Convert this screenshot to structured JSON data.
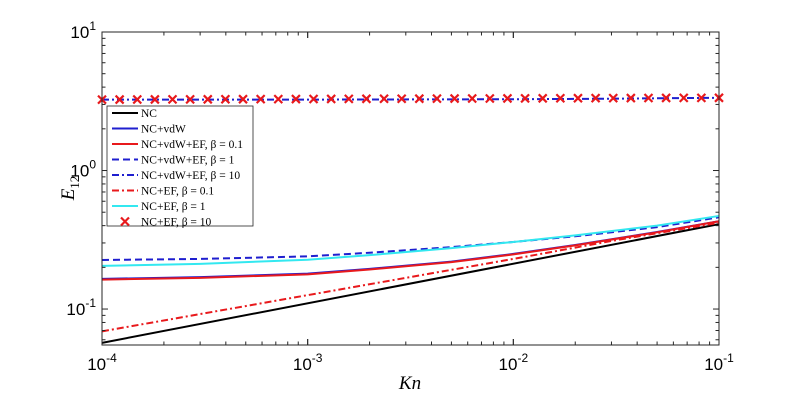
{
  "chart_data": {
    "type": "line",
    "xscale": "log",
    "yscale": "log",
    "xlim": [
      0.0001,
      0.1
    ],
    "ylim": [
      0.055,
      10
    ],
    "xlabel": "Kn",
    "ylabel": "E12",
    "ylabel_main": "E",
    "ylabel_sub": "12",
    "x_ticks": [
      {
        "value": 0.0001,
        "base": "10",
        "exp": "-4"
      },
      {
        "value": 0.001,
        "base": "10",
        "exp": "-3"
      },
      {
        "value": 0.01,
        "base": "10",
        "exp": "-2"
      },
      {
        "value": 0.1,
        "base": "10",
        "exp": "-1"
      }
    ],
    "y_ticks": [
      {
        "value": 0.1,
        "base": "10",
        "exp": "-1"
      },
      {
        "value": 1,
        "base": "10",
        "exp": "0"
      },
      {
        "value": 10,
        "base": "10",
        "exp": "1"
      }
    ],
    "grid": false,
    "legend_position": "left-center",
    "series": [
      {
        "name": "NC",
        "color": "#000000",
        "style": "solid",
        "x": [
          0.0001,
          0.1
        ],
        "y": [
          0.057,
          0.41
        ]
      },
      {
        "name": "NC+vdW",
        "color": "#1f1fcf",
        "style": "solid",
        "x": [
          0.0001,
          0.0003,
          0.001,
          0.002,
          0.005,
          0.01,
          0.02,
          0.05,
          0.1
        ],
        "y": [
          0.165,
          0.17,
          0.18,
          0.195,
          0.22,
          0.25,
          0.29,
          0.36,
          0.43
        ]
      },
      {
        "name": "NC+vdW+EF, β = 0.1",
        "color": "#e8191c",
        "style": "solid",
        "x": [
          0.0001,
          0.0003,
          0.001,
          0.002,
          0.005,
          0.01,
          0.02,
          0.05,
          0.1
        ],
        "y": [
          0.163,
          0.168,
          0.178,
          0.193,
          0.218,
          0.248,
          0.288,
          0.358,
          0.43
        ]
      },
      {
        "name": "NC+vdW+EF, β = 1",
        "color": "#1f1fcf",
        "style": "dashed",
        "x": [
          0.0001,
          0.0003,
          0.001,
          0.002,
          0.005,
          0.01,
          0.02,
          0.05,
          0.1
        ],
        "y": [
          0.226,
          0.23,
          0.24,
          0.255,
          0.28,
          0.305,
          0.335,
          0.39,
          0.46
        ]
      },
      {
        "name": "NC+vdW+EF, β = 10",
        "color": "#1f1fcf",
        "style": "dashdot",
        "x": [
          0.0001,
          0.001,
          0.01,
          0.03,
          0.1
        ],
        "y": [
          3.25,
          3.25,
          3.27,
          3.3,
          3.35
        ]
      },
      {
        "name": "NC+EF, β = 0.1",
        "color": "#e8191c",
        "style": "dashdot",
        "x": [
          0.0001,
          0.001,
          0.01,
          0.03,
          0.1
        ],
        "y": [
          0.069,
          0.126,
          0.23,
          0.31,
          0.42
        ]
      },
      {
        "name": "NC+EF, β = 1",
        "color": "#33e8f0",
        "style": "solid",
        "x": [
          0.0001,
          0.0003,
          0.001,
          0.002,
          0.005,
          0.01,
          0.02,
          0.05,
          0.1
        ],
        "y": [
          0.205,
          0.212,
          0.227,
          0.245,
          0.275,
          0.305,
          0.34,
          0.4,
          0.47
        ]
      },
      {
        "name": "NC+EF, β = 10",
        "color": "#e8191c",
        "style": "marker-x",
        "x_count": 36,
        "y": [
          3.25,
          3.35
        ]
      }
    ]
  }
}
